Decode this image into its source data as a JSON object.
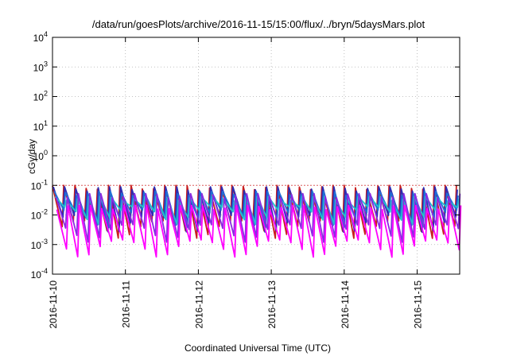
{
  "chart_data": {
    "type": "line",
    "title": "/data/run/goesPlots/archive/2016-11-15/15:00/flux/../bryn/5daysMars.plot",
    "xlabel": "Coordinated Universal Time (UTC)",
    "ylabel": "cGy/day",
    "yscale": "log",
    "ylim": [
      0.0001,
      10000
    ],
    "y_ticks": [
      {
        "value": 0.0001,
        "base": "10",
        "exp": "-4"
      },
      {
        "value": 0.001,
        "base": "10",
        "exp": "-3"
      },
      {
        "value": 0.01,
        "base": "10",
        "exp": "-2"
      },
      {
        "value": 0.1,
        "base": "10",
        "exp": "-1"
      },
      {
        "value": 1,
        "base": "10",
        "exp": "0"
      },
      {
        "value": 10,
        "base": "10",
        "exp": "1"
      },
      {
        "value": 100,
        "base": "10",
        "exp": "2"
      },
      {
        "value": 1000,
        "base": "10",
        "exp": "3"
      },
      {
        "value": 10000,
        "base": "10",
        "exp": "4"
      }
    ],
    "x_ticks": [
      "2016-11-10",
      "2016-11-11",
      "2016-11-12",
      "2016-11-13",
      "2016-11-14",
      "2016-11-15"
    ],
    "xlim_days": [
      0,
      5.67
    ],
    "grid": true,
    "reference_line": {
      "y": 0.1,
      "color": "#e06060"
    },
    "cycles_per_day": 6.5,
    "series": [
      {
        "color": "#c81e1e",
        "peak": 0.095,
        "trough": 0.004
      },
      {
        "color": "#2d2db4",
        "peak": 0.085,
        "trough": 0.006
      },
      {
        "color": "#1f6fd6",
        "peak": 0.06,
        "trough": 0.009
      },
      {
        "color": "#22c4cc",
        "peak": 0.04,
        "trough": 0.012
      },
      {
        "color": "#8a2be2",
        "peak": 0.05,
        "trough": 0.003
      },
      {
        "color": "#ff00ff",
        "peak": 0.02,
        "trough": 0.0009
      }
    ]
  }
}
